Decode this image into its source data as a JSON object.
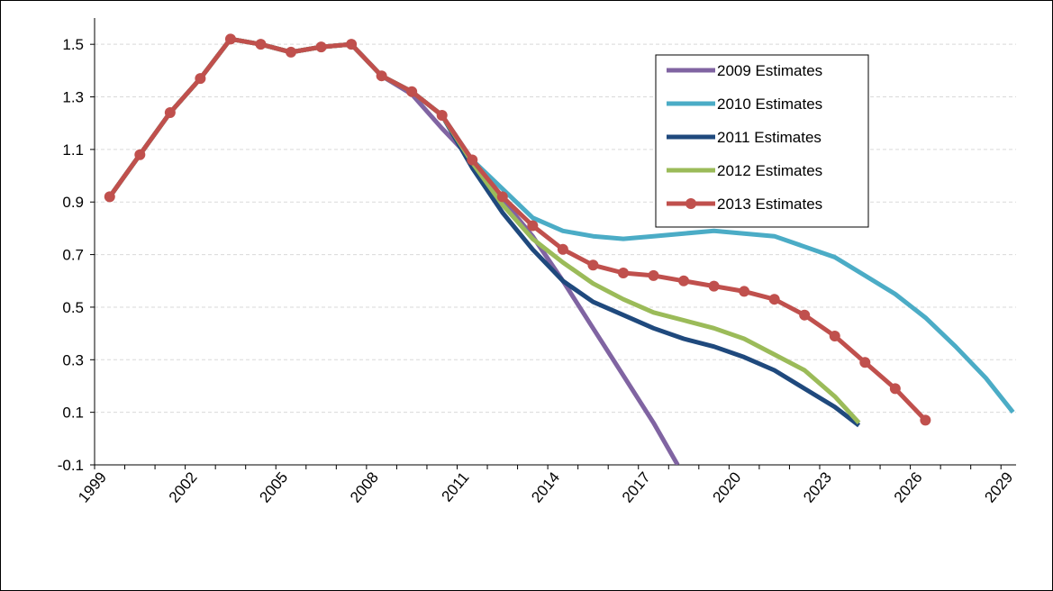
{
  "chart_data": {
    "type": "line",
    "x_axis": {
      "min": 1999,
      "max": 2029.5,
      "ticks": [
        "1999",
        "2002",
        "2005",
        "2008",
        "2011",
        "2014",
        "2017",
        "2020",
        "2023",
        "2026",
        "2029"
      ]
    },
    "y_axis": {
      "min": -0.1,
      "max": 1.6,
      "ticks": [
        "1.5",
        "1.3",
        "1.1",
        "0.9",
        "0.7",
        "0.5",
        "0.3",
        "0.1",
        "-0.1"
      ]
    },
    "grid": "horizontal dashed",
    "legend_position": "top-right",
    "series": [
      {
        "name": "2009 Estimates",
        "color": "#8064a2",
        "markers": false,
        "points": [
          [
            1999.5,
            0.92
          ],
          [
            2000.5,
            1.08
          ],
          [
            2001.5,
            1.24
          ],
          [
            2002.5,
            1.37
          ],
          [
            2003.5,
            1.52
          ],
          [
            2004.5,
            1.5
          ],
          [
            2005.5,
            1.47
          ],
          [
            2006.5,
            1.49
          ],
          [
            2007.5,
            1.5
          ],
          [
            2008.5,
            1.38
          ],
          [
            2009.5,
            1.31
          ],
          [
            2010.5,
            1.18
          ],
          [
            2011.5,
            1.06
          ],
          [
            2012.5,
            0.91
          ],
          [
            2013.5,
            0.77
          ],
          [
            2014.5,
            0.6
          ],
          [
            2015.5,
            0.42
          ],
          [
            2016.5,
            0.24
          ],
          [
            2017.5,
            0.06
          ],
          [
            2018.3,
            -0.1
          ]
        ]
      },
      {
        "name": "2010 Estimates",
        "color": "#4bacc6",
        "markers": false,
        "points": [
          [
            1999.5,
            0.92
          ],
          [
            2000.5,
            1.08
          ],
          [
            2001.5,
            1.24
          ],
          [
            2002.5,
            1.37
          ],
          [
            2003.5,
            1.52
          ],
          [
            2004.5,
            1.5
          ],
          [
            2005.5,
            1.47
          ],
          [
            2006.5,
            1.49
          ],
          [
            2007.5,
            1.5
          ],
          [
            2008.5,
            1.38
          ],
          [
            2009.5,
            1.32
          ],
          [
            2010.5,
            1.23
          ],
          [
            2011.5,
            1.06
          ],
          [
            2012.5,
            0.95
          ],
          [
            2013.5,
            0.84
          ],
          [
            2014.5,
            0.79
          ],
          [
            2015.5,
            0.77
          ],
          [
            2016.5,
            0.76
          ],
          [
            2017.5,
            0.77
          ],
          [
            2018.5,
            0.78
          ],
          [
            2019.5,
            0.79
          ],
          [
            2020.5,
            0.78
          ],
          [
            2021.5,
            0.77
          ],
          [
            2022.5,
            0.73
          ],
          [
            2023.5,
            0.69
          ],
          [
            2024.5,
            0.62
          ],
          [
            2025.5,
            0.55
          ],
          [
            2026.5,
            0.46
          ],
          [
            2027.5,
            0.35
          ],
          [
            2028.5,
            0.23
          ],
          [
            2029.4,
            0.1
          ]
        ]
      },
      {
        "name": "2011 Estimates",
        "color": "#1f497d",
        "markers": false,
        "points": [
          [
            1999.5,
            0.92
          ],
          [
            2000.5,
            1.08
          ],
          [
            2001.5,
            1.24
          ],
          [
            2002.5,
            1.37
          ],
          [
            2003.5,
            1.52
          ],
          [
            2004.5,
            1.5
          ],
          [
            2005.5,
            1.47
          ],
          [
            2006.5,
            1.49
          ],
          [
            2007.5,
            1.5
          ],
          [
            2008.5,
            1.38
          ],
          [
            2009.5,
            1.32
          ],
          [
            2010.5,
            1.23
          ],
          [
            2011.5,
            1.03
          ],
          [
            2012.5,
            0.86
          ],
          [
            2013.5,
            0.72
          ],
          [
            2014.5,
            0.6
          ],
          [
            2015.5,
            0.52
          ],
          [
            2016.5,
            0.47
          ],
          [
            2017.5,
            0.42
          ],
          [
            2018.5,
            0.38
          ],
          [
            2019.5,
            0.35
          ],
          [
            2020.5,
            0.31
          ],
          [
            2021.5,
            0.26
          ],
          [
            2022.5,
            0.19
          ],
          [
            2023.5,
            0.12
          ],
          [
            2024.3,
            0.05
          ]
        ]
      },
      {
        "name": "2012 Estimates",
        "color": "#9bbb59",
        "markers": false,
        "points": [
          [
            1999.5,
            0.92
          ],
          [
            2000.5,
            1.08
          ],
          [
            2001.5,
            1.24
          ],
          [
            2002.5,
            1.37
          ],
          [
            2003.5,
            1.52
          ],
          [
            2004.5,
            1.5
          ],
          [
            2005.5,
            1.47
          ],
          [
            2006.5,
            1.49
          ],
          [
            2007.5,
            1.5
          ],
          [
            2008.5,
            1.38
          ],
          [
            2009.5,
            1.32
          ],
          [
            2010.5,
            1.23
          ],
          [
            2011.5,
            1.05
          ],
          [
            2012.5,
            0.89
          ],
          [
            2013.5,
            0.76
          ],
          [
            2014.5,
            0.67
          ],
          [
            2015.5,
            0.59
          ],
          [
            2016.5,
            0.53
          ],
          [
            2017.5,
            0.48
          ],
          [
            2018.5,
            0.45
          ],
          [
            2019.5,
            0.42
          ],
          [
            2020.5,
            0.38
          ],
          [
            2021.5,
            0.32
          ],
          [
            2022.5,
            0.26
          ],
          [
            2023.5,
            0.16
          ],
          [
            2024.3,
            0.06
          ]
        ]
      },
      {
        "name": "2013 Estimates",
        "color": "#c0504d",
        "markers": true,
        "points": [
          [
            1999.5,
            0.92
          ],
          [
            2000.5,
            1.08
          ],
          [
            2001.5,
            1.24
          ],
          [
            2002.5,
            1.37
          ],
          [
            2003.5,
            1.52
          ],
          [
            2004.5,
            1.5
          ],
          [
            2005.5,
            1.47
          ],
          [
            2006.5,
            1.49
          ],
          [
            2007.5,
            1.5
          ],
          [
            2008.5,
            1.38
          ],
          [
            2009.5,
            1.32
          ],
          [
            2010.5,
            1.23
          ],
          [
            2011.5,
            1.06
          ],
          [
            2012.5,
            0.92
          ],
          [
            2013.5,
            0.81
          ],
          [
            2014.5,
            0.72
          ],
          [
            2015.5,
            0.66
          ],
          [
            2016.5,
            0.63
          ],
          [
            2017.5,
            0.62
          ],
          [
            2018.5,
            0.6
          ],
          [
            2019.5,
            0.58
          ],
          [
            2020.5,
            0.56
          ],
          [
            2021.5,
            0.53
          ],
          [
            2022.5,
            0.47
          ],
          [
            2023.5,
            0.39
          ],
          [
            2024.5,
            0.29
          ],
          [
            2025.5,
            0.19
          ],
          [
            2026.5,
            0.07
          ]
        ]
      }
    ]
  }
}
